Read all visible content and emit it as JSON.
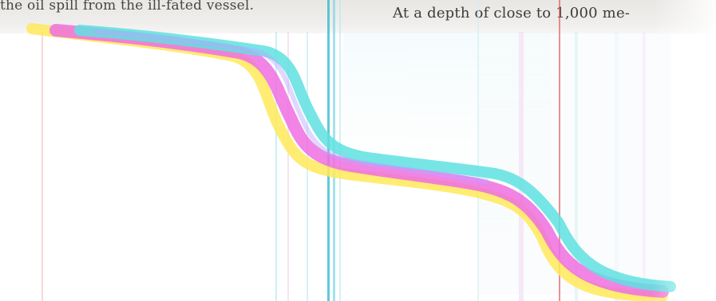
{
  "text": {
    "left_caption": "the oil spill from the ill-fated vessel.",
    "right_caption": "At a depth of close to 1,000 me-"
  },
  "colors": {
    "magenta": "#ee6fe0",
    "cyan": "#5fe0e0",
    "yellow": "#ffe95a",
    "teal_line": "#2bb7c9",
    "red_line": "#e04a4a"
  }
}
